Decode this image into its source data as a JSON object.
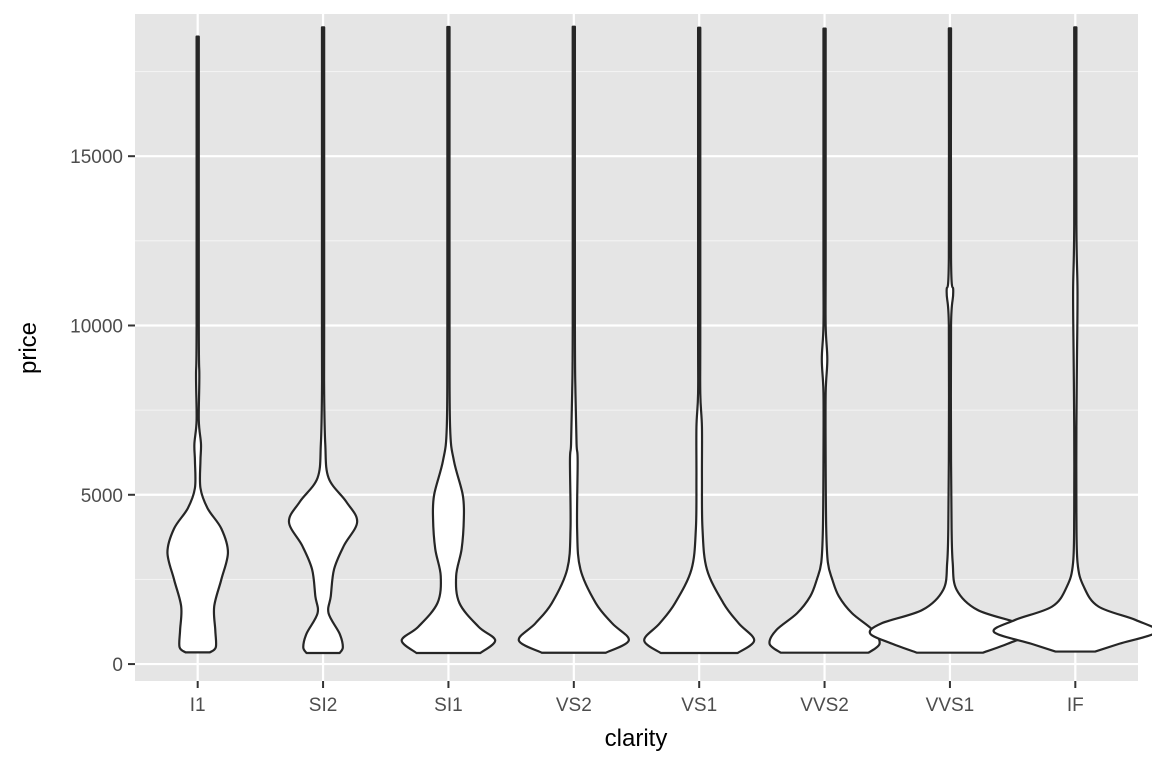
{
  "chart_data": {
    "type": "violin",
    "title": "",
    "xlabel": "clarity",
    "ylabel": "price",
    "categories": [
      "I1",
      "SI2",
      "SI1",
      "VS2",
      "VS1",
      "VVS2",
      "VVS1",
      "IF"
    ],
    "ylim": [
      -500,
      19200
    ],
    "y_ticks": [
      0,
      5000,
      10000,
      15000
    ],
    "y_tick_labels": [
      "0",
      "5000",
      "10000",
      "15000"
    ],
    "grid": true,
    "legend": "none",
    "colors": {
      "panel": "#e5e5e5",
      "grid": "#ffffff",
      "violin_fill": "#ffffff",
      "violin_stroke": "#262626",
      "tick_text": "#4d4d4d",
      "tick_mark": "#333333"
    },
    "violins": [
      {
        "category": "I1",
        "min": 345,
        "max": 18531,
        "profile": [
          [
            345,
            0.22
          ],
          [
            500,
            0.33
          ],
          [
            1000,
            0.32
          ],
          [
            1700,
            0.3
          ],
          [
            2500,
            0.43
          ],
          [
            3300,
            0.55
          ],
          [
            4000,
            0.43
          ],
          [
            4600,
            0.18
          ],
          [
            5200,
            0.05
          ],
          [
            6000,
            0.05
          ],
          [
            6500,
            0.06
          ],
          [
            7200,
            0.02
          ],
          [
            8500,
            0.03
          ],
          [
            10000,
            0.01
          ],
          [
            18531,
            0.01
          ]
        ]
      },
      {
        "category": "SI2",
        "min": 326,
        "max": 18804,
        "profile": [
          [
            326,
            0.3
          ],
          [
            500,
            0.36
          ],
          [
            900,
            0.3
          ],
          [
            1500,
            0.1
          ],
          [
            2000,
            0.14
          ],
          [
            2800,
            0.2
          ],
          [
            3500,
            0.38
          ],
          [
            4200,
            0.62
          ],
          [
            4800,
            0.42
          ],
          [
            5500,
            0.1
          ],
          [
            6500,
            0.04
          ],
          [
            8000,
            0.02
          ],
          [
            10000,
            0.01
          ],
          [
            18804,
            0.01
          ]
        ]
      },
      {
        "category": "SI1",
        "min": 326,
        "max": 18818,
        "profile": [
          [
            326,
            0.58
          ],
          [
            700,
            0.85
          ],
          [
            1100,
            0.55
          ],
          [
            1800,
            0.2
          ],
          [
            2600,
            0.14
          ],
          [
            3400,
            0.24
          ],
          [
            4300,
            0.28
          ],
          [
            5000,
            0.26
          ],
          [
            6000,
            0.1
          ],
          [
            7000,
            0.03
          ],
          [
            10000,
            0.01
          ],
          [
            18818,
            0.01
          ]
        ]
      },
      {
        "category": "VS2",
        "min": 334,
        "max": 18823,
        "profile": [
          [
            334,
            0.58
          ],
          [
            700,
            1.0
          ],
          [
            1200,
            0.7
          ],
          [
            1800,
            0.4
          ],
          [
            2800,
            0.12
          ],
          [
            4000,
            0.06
          ],
          [
            6000,
            0.07
          ],
          [
            6500,
            0.05
          ],
          [
            8000,
            0.03
          ],
          [
            10000,
            0.01
          ],
          [
            18823,
            0.01
          ]
        ]
      },
      {
        "category": "VS1",
        "min": 327,
        "max": 18795,
        "profile": [
          [
            327,
            0.7
          ],
          [
            700,
            1.0
          ],
          [
            1200,
            0.72
          ],
          [
            1800,
            0.44
          ],
          [
            2800,
            0.14
          ],
          [
            4000,
            0.06
          ],
          [
            5500,
            0.05
          ],
          [
            7000,
            0.05
          ],
          [
            8000,
            0.02
          ],
          [
            10000,
            0.01
          ],
          [
            18795,
            0.01
          ]
        ]
      },
      {
        "category": "VVS2",
        "min": 336,
        "max": 18768,
        "profile": [
          [
            336,
            0.8
          ],
          [
            600,
            1.0
          ],
          [
            1000,
            0.88
          ],
          [
            1500,
            0.5
          ],
          [
            2000,
            0.26
          ],
          [
            2500,
            0.14
          ],
          [
            3000,
            0.06
          ],
          [
            4000,
            0.03
          ],
          [
            6000,
            0.02
          ],
          [
            8000,
            0.02
          ],
          [
            9000,
            0.05
          ],
          [
            10000,
            0.02
          ],
          [
            12000,
            0.01
          ],
          [
            18768,
            0.01
          ]
        ]
      },
      {
        "category": "VVS1",
        "min": 336,
        "max": 18777,
        "profile": [
          [
            336,
            0.6
          ],
          [
            600,
            1.05
          ],
          [
            900,
            1.45
          ],
          [
            1200,
            1.25
          ],
          [
            1600,
            0.5
          ],
          [
            2200,
            0.12
          ],
          [
            3000,
            0.05
          ],
          [
            4000,
            0.03
          ],
          [
            6000,
            0.02
          ],
          [
            10000,
            0.02
          ],
          [
            11000,
            0.06
          ],
          [
            12000,
            0.02
          ],
          [
            18777,
            0.01
          ]
        ]
      },
      {
        "category": "IF",
        "min": 369,
        "max": 18806,
        "profile": [
          [
            369,
            0.36
          ],
          [
            600,
            0.8
          ],
          [
            950,
            1.48
          ],
          [
            1300,
            1.1
          ],
          [
            1700,
            0.42
          ],
          [
            2300,
            0.15
          ],
          [
            3000,
            0.04
          ],
          [
            4500,
            0.02
          ],
          [
            7000,
            0.02
          ],
          [
            9000,
            0.03
          ],
          [
            11000,
            0.04
          ],
          [
            13000,
            0.02
          ],
          [
            18806,
            0.01
          ]
        ]
      }
    ]
  }
}
